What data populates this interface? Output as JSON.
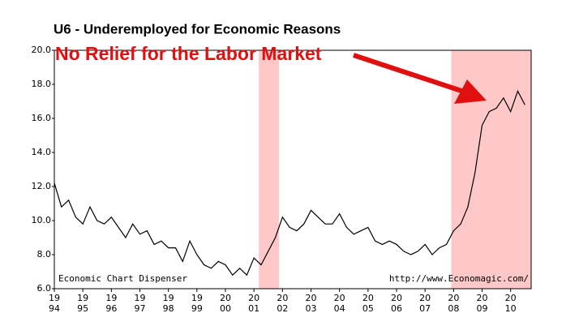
{
  "chart_data": {
    "type": "line",
    "title": "U6 - Underemployed for Economic Reasons",
    "annotation": "No Relief for the Labor Market",
    "footer_left": "Economic Chart Dispenser",
    "footer_right": "http://www.Economagic.com/",
    "color": "#000000",
    "shade_color": "#ffc8c8",
    "shaded_regions": [
      [
        2001.17,
        2001.88
      ],
      [
        2007.92,
        2010.72
      ]
    ],
    "x": [
      1994,
      1994.25,
      1994.5,
      1994.75,
      1995,
      1995.25,
      1995.5,
      1995.75,
      1996,
      1996.25,
      1996.5,
      1996.75,
      1997,
      1997.25,
      1997.5,
      1997.75,
      1998,
      1998.25,
      1998.5,
      1998.75,
      1999,
      1999.25,
      1999.5,
      1999.75,
      2000,
      2000.25,
      2000.5,
      2000.75,
      2001,
      2001.25,
      2001.5,
      2001.75,
      2002,
      2002.25,
      2002.5,
      2002.75,
      2003,
      2003.25,
      2003.5,
      2003.75,
      2004,
      2004.25,
      2004.5,
      2004.75,
      2005,
      2005.25,
      2005.5,
      2005.75,
      2006,
      2006.25,
      2006.5,
      2006.75,
      2007,
      2007.25,
      2007.5,
      2007.75,
      2008,
      2008.25,
      2008.5,
      2008.75,
      2009,
      2009.25,
      2009.5,
      2009.75,
      2010,
      2010.25,
      2010.5
    ],
    "values": [
      12.2,
      10.8,
      11.2,
      10.2,
      9.8,
      10.8,
      10.0,
      9.8,
      10.2,
      9.6,
      9.0,
      9.8,
      9.2,
      9.4,
      8.6,
      8.8,
      8.4,
      8.4,
      7.6,
      8.8,
      8.0,
      7.4,
      7.2,
      7.6,
      7.4,
      6.8,
      7.2,
      6.8,
      7.8,
      7.4,
      8.2,
      9.0,
      10.2,
      9.6,
      9.4,
      9.8,
      10.6,
      10.2,
      9.8,
      9.8,
      10.4,
      9.6,
      9.2,
      9.4,
      9.6,
      8.8,
      8.6,
      8.8,
      8.6,
      8.2,
      8.0,
      8.2,
      8.6,
      8.0,
      8.4,
      8.6,
      9.4,
      9.8,
      10.8,
      12.8,
      15.6,
      16.4,
      16.6,
      17.2,
      16.4,
      17.6,
      16.8
    ],
    "xlim": [
      1994,
      2010.72
    ],
    "ylim": [
      6,
      20
    ],
    "yticks": [
      {
        "value": 6,
        "label": "6.0"
      },
      {
        "value": 8,
        "label": "8.0"
      },
      {
        "value": 10,
        "label": "10.0"
      },
      {
        "value": 12,
        "label": "12.0"
      },
      {
        "value": 14,
        "label": "14.0"
      },
      {
        "value": 16,
        "label": "16.0"
      },
      {
        "value": 18,
        "label": "18.0"
      },
      {
        "value": 20,
        "label": "20.0"
      }
    ],
    "xticks": [
      {
        "value": 1994,
        "label": [
          "19",
          "94"
        ]
      },
      {
        "value": 1995,
        "label": [
          "19",
          "95"
        ]
      },
      {
        "value": 1996,
        "label": [
          "19",
          "96"
        ]
      },
      {
        "value": 1997,
        "label": [
          "19",
          "97"
        ]
      },
      {
        "value": 1998,
        "label": [
          "19",
          "98"
        ]
      },
      {
        "value": 1999,
        "label": [
          "19",
          "99"
        ]
      },
      {
        "value": 2000,
        "label": [
          "20",
          "00"
        ]
      },
      {
        "value": 2001,
        "label": [
          "20",
          "01"
        ]
      },
      {
        "value": 2002,
        "label": [
          "20",
          "02"
        ]
      },
      {
        "value": 2003,
        "label": [
          "20",
          "03"
        ]
      },
      {
        "value": 2004,
        "label": [
          "20",
          "04"
        ]
      },
      {
        "value": 2005,
        "label": [
          "20",
          "05"
        ]
      },
      {
        "value": 2006,
        "label": [
          "20",
          "06"
        ]
      },
      {
        "value": 2007,
        "label": [
          "20",
          "07"
        ]
      },
      {
        "value": 2008,
        "label": [
          "20",
          "08"
        ]
      },
      {
        "value": 2009,
        "label": [
          "20",
          "09"
        ]
      },
      {
        "value": 2010,
        "label": [
          "20",
          "10"
        ]
      }
    ]
  }
}
